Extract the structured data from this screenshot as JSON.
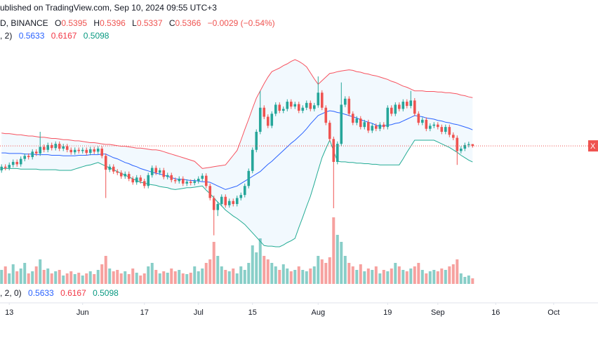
{
  "chart_data": {
    "type": "candlestick",
    "title": "ublished on TradingView.com, Sep 10, 2024 09:55 UTC+3",
    "symbol": "D, BINANCE",
    "ohlc_letters": [
      "O",
      "H",
      "L",
      "C"
    ],
    "change": "−0.0029 (−0.54%)",
    "indicator": ", 2)",
    "volume_indicator": ", 2, 0)",
    "price_tag": "X",
    "xlim": [
      -0.4,
      152.3
    ],
    "xticks": [
      {
        "value": 2,
        "label": "13"
      },
      {
        "value": 21,
        "label": "Jun"
      },
      {
        "value": 37,
        "label": "17"
      },
      {
        "value": 51,
        "label": "Jul"
      },
      {
        "value": 65,
        "label": "15"
      },
      {
        "value": 82,
        "label": "Aug"
      },
      {
        "value": 100,
        "label": "19"
      },
      {
        "value": 113,
        "label": "Sep"
      },
      {
        "value": 128,
        "label": "16"
      },
      {
        "value": 143,
        "label": "Oct"
      }
    ],
    "ylim": [
      0.249,
      0.779
    ],
    "vlim": [
      0,
      100
    ],
    "colors": {
      "up": "#26a69a",
      "down": "#ef5350",
      "upper": "#f7525f",
      "middle": "#2962ff",
      "lower": "#22ab94",
      "fill": "#2196f3"
    },
    "open": [
      0.496,
      0.502,
      0.5,
      0.505,
      0.51,
      0.506,
      0.515,
      0.52,
      0.518,
      0.527,
      0.524,
      0.535,
      0.53,
      0.538,
      0.533,
      0.54,
      0.532,
      0.536,
      0.53,
      0.526,
      0.53,
      0.528,
      0.53,
      0.525,
      0.531,
      0.527,
      0.532,
      0.52,
      0.497,
      0.502,
      0.494,
      0.492,
      0.486,
      0.49,
      0.482,
      0.476,
      0.484,
      0.478,
      0.47,
      0.488,
      0.5,
      0.492,
      0.496,
      0.485,
      0.488,
      0.48,
      0.478,
      0.482,
      0.474,
      0.477,
      0.475,
      0.478,
      0.482,
      0.487,
      0.47,
      0.45,
      0.43,
      0.44,
      0.452,
      0.438,
      0.445,
      0.44,
      0.45,
      0.455,
      0.47,
      0.495,
      0.53,
      0.56,
      0.6,
      0.585,
      0.57,
      0.59,
      0.605,
      0.595,
      0.598,
      0.61,
      0.602,
      0.606,
      0.595,
      0.6,
      0.608,
      0.598,
      0.604,
      0.625,
      0.6,
      0.575,
      0.548,
      0.51,
      0.54,
      0.605,
      0.615,
      0.59,
      0.575,
      0.582,
      0.568,
      0.576,
      0.562,
      0.57,
      0.565,
      0.572,
      0.568,
      0.6,
      0.59,
      0.605,
      0.598,
      0.61,
      0.603,
      0.612,
      0.59,
      0.575,
      0.58,
      0.565,
      0.57,
      0.572,
      0.568,
      0.56,
      0.568,
      0.555,
      0.55,
      0.528,
      0.532,
      0.538,
      0.5395
    ],
    "high": [
      0.506,
      0.506,
      0.509,
      0.514,
      0.514,
      0.519,
      0.524,
      0.524,
      0.531,
      0.531,
      0.56,
      0.539,
      0.542,
      0.542,
      0.544,
      0.544,
      0.54,
      0.54,
      0.534,
      0.534,
      0.534,
      0.534,
      0.534,
      0.535,
      0.535,
      0.536,
      0.536,
      0.524,
      0.506,
      0.506,
      0.498,
      0.496,
      0.494,
      0.494,
      0.486,
      0.488,
      0.488,
      0.482,
      0.492,
      0.504,
      0.504,
      0.5,
      0.5,
      0.492,
      0.492,
      0.484,
      0.486,
      0.486,
      0.481,
      0.481,
      0.482,
      0.486,
      0.491,
      0.491,
      0.474,
      0.454,
      0.444,
      0.456,
      0.456,
      0.449,
      0.449,
      0.454,
      0.459,
      0.474,
      0.499,
      0.534,
      0.564,
      0.628,
      0.604,
      0.589,
      0.594,
      0.609,
      0.609,
      0.602,
      0.614,
      0.614,
      0.61,
      0.61,
      0.604,
      0.612,
      0.612,
      0.608,
      0.652,
      0.629,
      0.604,
      0.579,
      0.552,
      0.544,
      0.642,
      0.619,
      0.619,
      0.594,
      0.586,
      0.586,
      0.58,
      0.58,
      0.574,
      0.574,
      0.576,
      0.576,
      0.604,
      0.604,
      0.609,
      0.609,
      0.614,
      0.614,
      0.628,
      0.616,
      0.594,
      0.584,
      0.584,
      0.574,
      0.576,
      0.576,
      0.572,
      0.572,
      0.572,
      0.559,
      0.554,
      0.536,
      0.542,
      0.5435,
      0.5396
    ],
    "low": [
      0.492,
      0.496,
      0.496,
      0.501,
      0.502,
      0.502,
      0.511,
      0.514,
      0.514,
      0.52,
      0.52,
      0.526,
      0.526,
      0.529,
      0.529,
      0.528,
      0.528,
      0.526,
      0.522,
      0.522,
      0.524,
      0.524,
      0.521,
      0.521,
      0.523,
      0.523,
      0.516,
      0.45,
      0.493,
      0.49,
      0.488,
      0.482,
      0.482,
      0.478,
      0.472,
      0.472,
      0.474,
      0.466,
      0.466,
      0.484,
      0.488,
      0.488,
      0.481,
      0.481,
      0.476,
      0.474,
      0.474,
      0.47,
      0.47,
      0.471,
      0.471,
      0.474,
      0.478,
      0.466,
      0.446,
      0.388,
      0.42,
      0.436,
      0.434,
      0.434,
      0.436,
      0.436,
      0.446,
      0.451,
      0.466,
      0.491,
      0.526,
      0.556,
      0.581,
      0.566,
      0.566,
      0.586,
      0.591,
      0.591,
      0.594,
      0.598,
      0.598,
      0.591,
      0.591,
      0.596,
      0.594,
      0.594,
      0.6,
      0.596,
      0.571,
      0.544,
      0.433,
      0.506,
      0.536,
      0.601,
      0.586,
      0.571,
      0.571,
      0.564,
      0.564,
      0.558,
      0.558,
      0.561,
      0.561,
      0.564,
      0.564,
      0.586,
      0.586,
      0.594,
      0.594,
      0.599,
      0.599,
      0.586,
      0.571,
      0.571,
      0.561,
      0.561,
      0.566,
      0.564,
      0.556,
      0.556,
      0.551,
      0.546,
      0.505,
      0.524,
      0.528,
      0.534,
      0.5337
    ],
    "close": [
      0.502,
      0.5,
      0.505,
      0.51,
      0.506,
      0.515,
      0.52,
      0.518,
      0.527,
      0.524,
      0.535,
      0.53,
      0.538,
      0.533,
      0.54,
      0.532,
      0.536,
      0.53,
      0.526,
      0.53,
      0.528,
      0.53,
      0.525,
      0.531,
      0.527,
      0.532,
      0.52,
      0.497,
      0.502,
      0.494,
      0.492,
      0.486,
      0.49,
      0.482,
      0.476,
      0.484,
      0.478,
      0.47,
      0.488,
      0.5,
      0.492,
      0.496,
      0.485,
      0.488,
      0.48,
      0.478,
      0.482,
      0.474,
      0.477,
      0.475,
      0.478,
      0.482,
      0.487,
      0.47,
      0.45,
      0.43,
      0.44,
      0.452,
      0.438,
      0.445,
      0.44,
      0.45,
      0.455,
      0.47,
      0.495,
      0.53,
      0.56,
      0.6,
      0.585,
      0.57,
      0.59,
      0.605,
      0.595,
      0.598,
      0.61,
      0.602,
      0.606,
      0.595,
      0.6,
      0.608,
      0.598,
      0.604,
      0.625,
      0.6,
      0.575,
      0.548,
      0.51,
      0.54,
      0.605,
      0.615,
      0.59,
      0.575,
      0.582,
      0.568,
      0.576,
      0.562,
      0.57,
      0.565,
      0.572,
      0.568,
      0.6,
      0.59,
      0.605,
      0.598,
      0.61,
      0.603,
      0.612,
      0.59,
      0.575,
      0.58,
      0.565,
      0.57,
      0.572,
      0.568,
      0.56,
      0.568,
      0.555,
      0.55,
      0.528,
      0.532,
      0.538,
      0.5395,
      0.5366
    ],
    "volume": [
      20,
      25,
      15,
      28,
      18,
      22,
      30,
      15,
      18,
      25,
      35,
      20,
      22,
      15,
      18,
      20,
      12,
      15,
      18,
      14,
      16,
      12,
      15,
      18,
      14,
      20,
      28,
      40,
      22,
      18,
      20,
      15,
      18,
      14,
      22,
      16,
      12,
      15,
      25,
      30,
      20,
      15,
      18,
      16,
      22,
      18,
      20,
      15,
      14,
      16,
      25,
      18,
      22,
      30,
      35,
      60,
      40,
      25,
      20,
      18,
      22,
      15,
      25,
      20,
      30,
      55,
      45,
      65,
      40,
      35,
      30,
      25,
      20,
      28,
      22,
      18,
      20,
      25,
      20,
      18,
      22,
      25,
      40,
      35,
      30,
      38,
      95,
      70,
      60,
      40,
      30,
      25,
      20,
      28,
      18,
      22,
      20,
      25,
      15,
      20,
      18,
      22,
      30,
      25,
      20,
      18,
      22,
      25,
      30,
      20,
      15,
      18,
      20,
      18,
      22,
      20,
      25,
      28,
      35,
      15,
      10,
      12,
      8
    ],
    "upper": [
      0.558,
      0.557,
      0.557,
      0.556,
      0.555,
      0.555,
      0.554,
      0.553,
      0.553,
      0.552,
      0.551,
      0.551,
      0.55,
      0.549,
      0.549,
      0.548,
      0.547,
      0.547,
      0.546,
      0.545,
      0.545,
      0.544,
      0.543,
      0.542,
      0.542,
      0.541,
      0.54,
      0.539,
      0.539,
      0.538,
      0.537,
      0.536,
      0.536,
      0.535,
      0.534,
      0.533,
      0.533,
      0.532,
      0.531,
      0.53,
      0.53,
      0.529,
      0.527,
      0.525,
      0.523,
      0.521,
      0.519,
      0.517,
      0.515,
      0.513,
      0.511,
      0.505,
      0.499,
      0.5,
      0.501,
      0.502,
      0.503,
      0.504,
      0.505,
      0.513,
      0.521,
      0.529,
      0.546,
      0.564,
      0.581,
      0.599,
      0.616,
      0.628,
      0.64,
      0.651,
      0.66,
      0.663,
      0.666,
      0.67,
      0.673,
      0.677,
      0.68,
      0.677,
      0.673,
      0.668,
      0.658,
      0.648,
      0.639,
      0.645,
      0.651,
      0.657,
      0.658,
      0.66,
      0.661,
      0.662,
      0.663,
      0.662,
      0.66,
      0.659,
      0.657,
      0.656,
      0.654,
      0.653,
      0.651,
      0.649,
      0.647,
      0.644,
      0.642,
      0.639,
      0.636,
      0.634,
      0.631,
      0.628,
      0.628,
      0.628,
      0.627,
      0.627,
      0.627,
      0.626,
      0.626,
      0.625,
      0.625,
      0.624,
      0.623,
      0.621,
      0.62,
      0.618,
      0.6167
    ],
    "middle": [
      0.525,
      0.525,
      0.524,
      0.524,
      0.524,
      0.524,
      0.523,
      0.523,
      0.523,
      0.522,
      0.522,
      0.522,
      0.522,
      0.521,
      0.521,
      0.521,
      0.52,
      0.52,
      0.52,
      0.52,
      0.521,
      0.521,
      0.521,
      0.522,
      0.522,
      0.522,
      0.523,
      0.523,
      0.52,
      0.517,
      0.515,
      0.512,
      0.509,
      0.507,
      0.504,
      0.502,
      0.499,
      0.497,
      0.495,
      0.493,
      0.491,
      0.49,
      0.488,
      0.486,
      0.484,
      0.482,
      0.481,
      0.481,
      0.48,
      0.479,
      0.479,
      0.478,
      0.477,
      0.477,
      0.476,
      0.473,
      0.47,
      0.467,
      0.464,
      0.466,
      0.468,
      0.47,
      0.474,
      0.478,
      0.482,
      0.486,
      0.49,
      0.494,
      0.5,
      0.506,
      0.511,
      0.517,
      0.523,
      0.529,
      0.535,
      0.541,
      0.546,
      0.552,
      0.558,
      0.565,
      0.573,
      0.58,
      0.587,
      0.59,
      0.593,
      0.595,
      0.594,
      0.592,
      0.591,
      0.589,
      0.587,
      0.585,
      0.583,
      0.58,
      0.578,
      0.576,
      0.574,
      0.571,
      0.569,
      0.57,
      0.571,
      0.572,
      0.574,
      0.575,
      0.578,
      0.581,
      0.584,
      0.587,
      0.586,
      0.585,
      0.583,
      0.582,
      0.581,
      0.579,
      0.578,
      0.576,
      0.575,
      0.573,
      0.572,
      0.57,
      0.568,
      0.566,
      0.5633
    ],
    "lower": [
      0.499,
      0.499,
      0.499,
      0.499,
      0.499,
      0.498,
      0.498,
      0.498,
      0.498,
      0.498,
      0.497,
      0.497,
      0.497,
      0.497,
      0.497,
      0.496,
      0.496,
      0.496,
      0.496,
      0.498,
      0.5,
      0.502,
      0.504,
      0.505,
      0.507,
      0.509,
      0.506,
      0.503,
      0.5,
      0.497,
      0.494,
      0.491,
      0.488,
      0.485,
      0.482,
      0.479,
      0.476,
      0.475,
      0.473,
      0.472,
      0.471,
      0.469,
      0.468,
      0.467,
      0.465,
      0.464,
      0.465,
      0.466,
      0.467,
      0.467,
      0.468,
      0.469,
      0.47,
      0.463,
      0.457,
      0.45,
      0.443,
      0.437,
      0.43,
      0.425,
      0.42,
      0.416,
      0.411,
      0.406,
      0.399,
      0.392,
      0.385,
      0.378,
      0.371,
      0.37,
      0.37,
      0.369,
      0.369,
      0.372,
      0.376,
      0.379,
      0.383,
      0.401,
      0.418,
      0.436,
      0.453,
      0.474,
      0.496,
      0.517,
      0.532,
      0.546,
      0.528,
      0.511,
      0.51,
      0.51,
      0.509,
      0.509,
      0.508,
      0.508,
      0.507,
      0.507,
      0.506,
      0.506,
      0.505,
      0.505,
      0.505,
      0.505,
      0.505,
      0.505,
      0.515,
      0.526,
      0.536,
      0.546,
      0.546,
      0.546,
      0.546,
      0.546,
      0.546,
      0.543,
      0.54,
      0.537,
      0.534,
      0.53,
      0.526,
      0.521,
      0.517,
      0.513,
      0.5098
    ]
  }
}
